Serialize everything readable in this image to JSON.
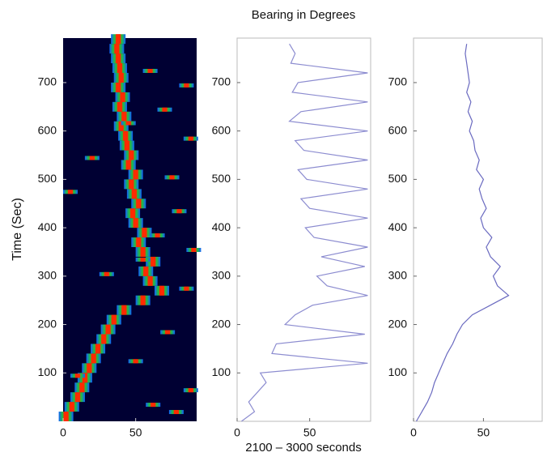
{
  "title": "Bearing in Degrees",
  "xlabel": "2100 – 3000 seconds",
  "ylabel": "Time (Sec)",
  "chart_data": [
    {
      "type": "scatter",
      "background": "#000033",
      "color": "#ff2a00",
      "xlim": [
        0,
        92
      ],
      "ylim": [
        0,
        792
      ],
      "xticks": [
        0,
        50
      ],
      "yticks": [
        100,
        200,
        300,
        400,
        500,
        600,
        700
      ],
      "y": [
        0,
        20,
        40,
        60,
        80,
        100,
        120,
        140,
        160,
        180,
        200,
        220,
        240,
        260,
        280,
        300,
        320,
        340,
        360,
        380,
        400,
        420,
        440,
        460,
        480,
        500,
        520,
        540,
        560,
        580,
        600,
        620,
        640,
        660,
        680,
        700,
        720,
        740,
        760,
        780,
        720,
        690,
        640,
        612,
        580,
        540,
        500,
        470,
        430,
        380,
        350,
        330,
        300,
        270,
        180,
        120,
        90,
        60,
        30,
        15
      ],
      "x": [
        2,
        6,
        10,
        13,
        15,
        18,
        21,
        24,
        28,
        31,
        35,
        42,
        55,
        68,
        60,
        57,
        62,
        55,
        52,
        56,
        50,
        48,
        52,
        49,
        47,
        50,
        45,
        47,
        44,
        43,
        40,
        42,
        39,
        41,
        38,
        40,
        39,
        38,
        37,
        38,
        60,
        85,
        70,
        45,
        88,
        20,
        75,
        5,
        80,
        65,
        90,
        55,
        30,
        85,
        72,
        50,
        10,
        88,
        62,
        78
      ]
    },
    {
      "type": "line",
      "color": "#8c8cd0",
      "xlim": [
        0,
        92
      ],
      "ylim": [
        0,
        792
      ],
      "xticks": [
        0,
        50
      ],
      "yticks": [
        100,
        200,
        300,
        400,
        500,
        600,
        700
      ],
      "y": [
        0,
        20,
        40,
        60,
        80,
        100,
        120,
        140,
        160,
        180,
        200,
        220,
        240,
        260,
        280,
        300,
        320,
        340,
        360,
        380,
        400,
        420,
        440,
        460,
        480,
        500,
        520,
        540,
        560,
        580,
        600,
        620,
        640,
        660,
        680,
        700,
        720,
        740,
        760,
        780
      ],
      "x": [
        3,
        12,
        8,
        14,
        20,
        16,
        90,
        24,
        27,
        88,
        33,
        40,
        52,
        90,
        62,
        55,
        88,
        58,
        90,
        53,
        47,
        90,
        50,
        44,
        90,
        48,
        42,
        90,
        46,
        40,
        90,
        36,
        44,
        90,
        38,
        42,
        90,
        37,
        40,
        36
      ]
    },
    {
      "type": "line",
      "color": "#6a6ac0",
      "xlim": [
        0,
        92
      ],
      "ylim": [
        0,
        792
      ],
      "xticks": [
        0,
        50
      ],
      "yticks": [
        100,
        200,
        300,
        400,
        500,
        600,
        700
      ],
      "y": [
        0,
        20,
        40,
        60,
        80,
        100,
        120,
        140,
        160,
        180,
        200,
        220,
        240,
        260,
        280,
        300,
        320,
        340,
        360,
        380,
        400,
        420,
        440,
        460,
        480,
        500,
        520,
        540,
        560,
        580,
        600,
        620,
        640,
        660,
        680,
        700,
        720,
        740,
        760,
        780
      ],
      "x": [
        2,
        6,
        10,
        13,
        15,
        18,
        21,
        24,
        28,
        31,
        35,
        42,
        55,
        68,
        60,
        57,
        62,
        55,
        52,
        56,
        50,
        48,
        52,
        49,
        47,
        50,
        45,
        47,
        44,
        43,
        40,
        42,
        39,
        41,
        38,
        40,
        39,
        38,
        37,
        38
      ]
    }
  ]
}
